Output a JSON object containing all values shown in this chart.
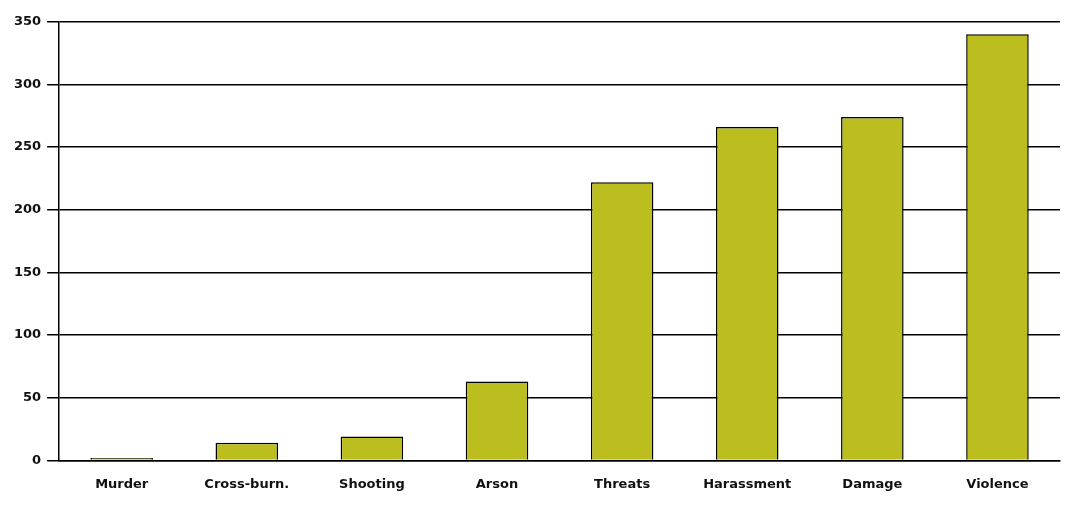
{
  "chart_data": {
    "type": "bar",
    "categories": [
      "Murder",
      "Cross-burn.",
      "Shooting",
      "Arson",
      "Threats",
      "Harassment",
      "Damage",
      "Violence"
    ],
    "values": [
      2,
      14,
      19,
      63,
      222,
      266,
      274,
      340
    ],
    "color": "#bcbd1e",
    "ylim": [
      0,
      350
    ],
    "yticks": [
      0,
      50,
      100,
      150,
      200,
      250,
      300,
      350
    ],
    "grid": "y",
    "legend": false
  }
}
